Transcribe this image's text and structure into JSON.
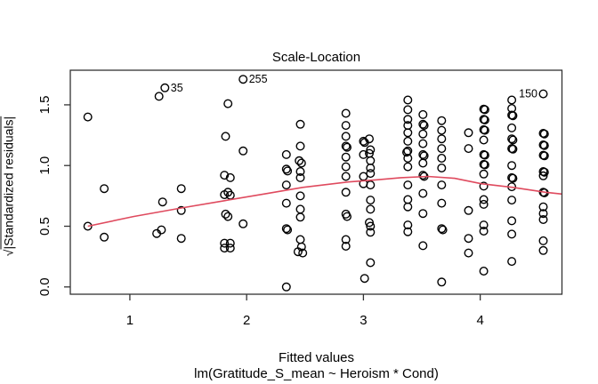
{
  "figure": {
    "title": "Scale-Location",
    "xlabel": "Fitted values",
    "caption": "lm(Gratitude_S_mean ~ Heroism * Cond)",
    "ylabel_radical": "√",
    "ylabel_inner": "|Standardized residuals|"
  },
  "chart_data": {
    "type": "scatter",
    "title": "Scale-Location",
    "xlabel": "Fitted values",
    "ylabel": "sqrt(|Standardized residuals|)",
    "model_caption": "lm(Gratitude_S_mean ~ Heroism * Cond)",
    "grid": false,
    "legend": "none",
    "xlim": [
      0.49,
      4.7
    ],
    "ylim": [
      -0.06,
      1.785
    ],
    "xticks": [
      1,
      2,
      3,
      4
    ],
    "xtick_labels": [
      "1",
      "2",
      "3",
      "4"
    ],
    "yticks": [
      0,
      0.5,
      1,
      1.5
    ],
    "ytick_labels": [
      "0.0",
      "0.5",
      "1.0",
      "1.5"
    ],
    "point_color": "#000000",
    "smooth_color": "#df4a5e",
    "labeled_points": [
      {
        "label": "35",
        "x": 1.3,
        "y": 1.64,
        "side": "right"
      },
      {
        "label": "255",
        "x": 1.97,
        "y": 1.71,
        "side": "right"
      },
      {
        "label": "150",
        "x": 4.54,
        "y": 1.59,
        "side": "left"
      }
    ],
    "smooth_line": [
      [
        0.64,
        0.5
      ],
      [
        1.03,
        0.58
      ],
      [
        1.44,
        0.65
      ],
      [
        1.81,
        0.71
      ],
      [
        2.18,
        0.77
      ],
      [
        2.48,
        0.82
      ],
      [
        2.87,
        0.865
      ],
      [
        3.09,
        0.88
      ],
      [
        3.32,
        0.9
      ],
      [
        3.55,
        0.91
      ],
      [
        3.78,
        0.895
      ],
      [
        4.01,
        0.85
      ],
      [
        4.28,
        0.82
      ],
      [
        4.56,
        0.78
      ],
      [
        4.7,
        0.765
      ]
    ],
    "points": [
      [
        0.64,
        1.4
      ],
      [
        0.64,
        0.5
      ],
      [
        0.78,
        0.81
      ],
      [
        0.78,
        0.41
      ],
      [
        1.25,
        1.57
      ],
      [
        1.28,
        0.7
      ],
      [
        1.27,
        0.47
      ],
      [
        1.23,
        0.44
      ],
      [
        1.44,
        0.81
      ],
      [
        1.44,
        0.63
      ],
      [
        1.44,
        0.4
      ],
      [
        1.84,
        1.51
      ],
      [
        1.82,
        1.24
      ],
      [
        1.81,
        0.92
      ],
      [
        1.86,
        0.9
      ],
      [
        1.81,
        0.76
      ],
      [
        1.84,
        0.78
      ],
      [
        1.86,
        0.755
      ],
      [
        1.82,
        0.6
      ],
      [
        1.84,
        0.58
      ],
      [
        1.81,
        0.36
      ],
      [
        1.86,
        0.36
      ],
      [
        1.81,
        0.32
      ],
      [
        1.86,
        0.32
      ],
      [
        1.97,
        1.12
      ],
      [
        1.97,
        0.52
      ],
      [
        2.34,
        1.09
      ],
      [
        2.34,
        0.97
      ],
      [
        2.35,
        0.955
      ],
      [
        2.34,
        0.84
      ],
      [
        2.34,
        0.69
      ],
      [
        2.34,
        0.48
      ],
      [
        2.35,
        0.47
      ],
      [
        2.34,
        0.0
      ],
      [
        2.46,
        1.34
      ],
      [
        2.46,
        1.16
      ],
      [
        2.45,
        1.04
      ],
      [
        2.47,
        1.02
      ],
      [
        2.46,
        0.95
      ],
      [
        2.46,
        0.9
      ],
      [
        2.46,
        0.75
      ],
      [
        2.46,
        0.64
      ],
      [
        2.46,
        0.575
      ],
      [
        2.46,
        0.39
      ],
      [
        2.47,
        0.33
      ],
      [
        2.44,
        0.29
      ],
      [
        2.48,
        0.28
      ],
      [
        2.85,
        1.43
      ],
      [
        2.85,
        1.33
      ],
      [
        2.85,
        1.24
      ],
      [
        2.85,
        1.16
      ],
      [
        2.86,
        1.15
      ],
      [
        2.85,
        1.07
      ],
      [
        2.85,
        0.99
      ],
      [
        2.85,
        0.91
      ],
      [
        2.85,
        0.78
      ],
      [
        2.85,
        0.6
      ],
      [
        2.86,
        0.58
      ],
      [
        2.85,
        0.39
      ],
      [
        2.85,
        0.335
      ],
      [
        3.0,
        1.2
      ],
      [
        3.01,
        1.19
      ],
      [
        3.0,
        1.09
      ],
      [
        3.0,
        0.91
      ],
      [
        3.0,
        0.85
      ],
      [
        3.01,
        0.07
      ],
      [
        3.05,
        1.22
      ],
      [
        3.06,
        1.13
      ],
      [
        3.05,
        1.1
      ],
      [
        3.06,
        1.04
      ],
      [
        3.06,
        0.98
      ],
      [
        3.06,
        0.935
      ],
      [
        3.06,
        0.84
      ],
      [
        3.06,
        0.715
      ],
      [
        3.06,
        0.64
      ],
      [
        3.05,
        0.53
      ],
      [
        3.06,
        0.5
      ],
      [
        3.06,
        0.45
      ],
      [
        3.06,
        0.2
      ],
      [
        3.38,
        1.54
      ],
      [
        3.38,
        1.46
      ],
      [
        3.38,
        1.38
      ],
      [
        3.38,
        1.33
      ],
      [
        3.38,
        1.27
      ],
      [
        3.38,
        1.2
      ],
      [
        3.38,
        1.12
      ],
      [
        3.37,
        1.11
      ],
      [
        3.38,
        1.06
      ],
      [
        3.38,
        0.99
      ],
      [
        3.38,
        0.84
      ],
      [
        3.38,
        0.72
      ],
      [
        3.38,
        0.66
      ],
      [
        3.38,
        0.51
      ],
      [
        3.38,
        0.455
      ],
      [
        3.51,
        1.42
      ],
      [
        3.51,
        1.34
      ],
      [
        3.52,
        1.33
      ],
      [
        3.51,
        1.26
      ],
      [
        3.51,
        1.18
      ],
      [
        3.51,
        1.09
      ],
      [
        3.52,
        1.08
      ],
      [
        3.51,
        1.02
      ],
      [
        3.51,
        0.92
      ],
      [
        3.52,
        0.91
      ],
      [
        3.51,
        0.77
      ],
      [
        3.51,
        0.605
      ],
      [
        3.51,
        0.34
      ],
      [
        3.67,
        1.37
      ],
      [
        3.67,
        1.29
      ],
      [
        3.67,
        1.22
      ],
      [
        3.67,
        1.14
      ],
      [
        3.67,
        1.06
      ],
      [
        3.67,
        0.98
      ],
      [
        3.67,
        0.84
      ],
      [
        3.67,
        0.69
      ],
      [
        3.67,
        0.48
      ],
      [
        3.68,
        0.47
      ],
      [
        3.67,
        0.04
      ],
      [
        3.9,
        1.27
      ],
      [
        3.9,
        1.14
      ],
      [
        3.9,
        0.63
      ],
      [
        3.9,
        0.4
      ],
      [
        3.9,
        0.28
      ],
      [
        4.03,
        1.465
      ],
      [
        4.04,
        1.46
      ],
      [
        4.03,
        1.38
      ],
      [
        4.04,
        1.375
      ],
      [
        4.03,
        1.295
      ],
      [
        4.04,
        1.29
      ],
      [
        4.03,
        1.21
      ],
      [
        4.03,
        1.09
      ],
      [
        4.04,
        1.085
      ],
      [
        4.03,
        1.01
      ],
      [
        4.04,
        1.005
      ],
      [
        4.03,
        0.93
      ],
      [
        4.03,
        0.83
      ],
      [
        4.03,
        0.72
      ],
      [
        4.03,
        0.68
      ],
      [
        4.03,
        0.51
      ],
      [
        4.03,
        0.46
      ],
      [
        4.03,
        0.13
      ],
      [
        4.27,
        1.54
      ],
      [
        4.27,
        1.47
      ],
      [
        4.27,
        1.415
      ],
      [
        4.28,
        1.41
      ],
      [
        4.27,
        1.31
      ],
      [
        4.27,
        1.22
      ],
      [
        4.28,
        1.21
      ],
      [
        4.27,
        1.14
      ],
      [
        4.28,
        1.135
      ],
      [
        4.27,
        1.0
      ],
      [
        4.27,
        0.9
      ],
      [
        4.28,
        0.895
      ],
      [
        4.27,
        0.825
      ],
      [
        4.27,
        0.715
      ],
      [
        4.27,
        0.545
      ],
      [
        4.27,
        0.435
      ],
      [
        4.27,
        0.21
      ],
      [
        4.54,
        1.265
      ],
      [
        4.55,
        1.26
      ],
      [
        4.54,
        1.17
      ],
      [
        4.55,
        1.165
      ],
      [
        4.54,
        1.085
      ],
      [
        4.55,
        1.08
      ],
      [
        4.54,
        0.95
      ],
      [
        4.55,
        0.945
      ],
      [
        4.54,
        0.915
      ],
      [
        4.54,
        0.78
      ],
      [
        4.55,
        0.775
      ],
      [
        4.54,
        0.66
      ],
      [
        4.54,
        0.605
      ],
      [
        4.54,
        0.555
      ],
      [
        4.54,
        0.38
      ],
      [
        4.54,
        0.3
      ]
    ]
  }
}
